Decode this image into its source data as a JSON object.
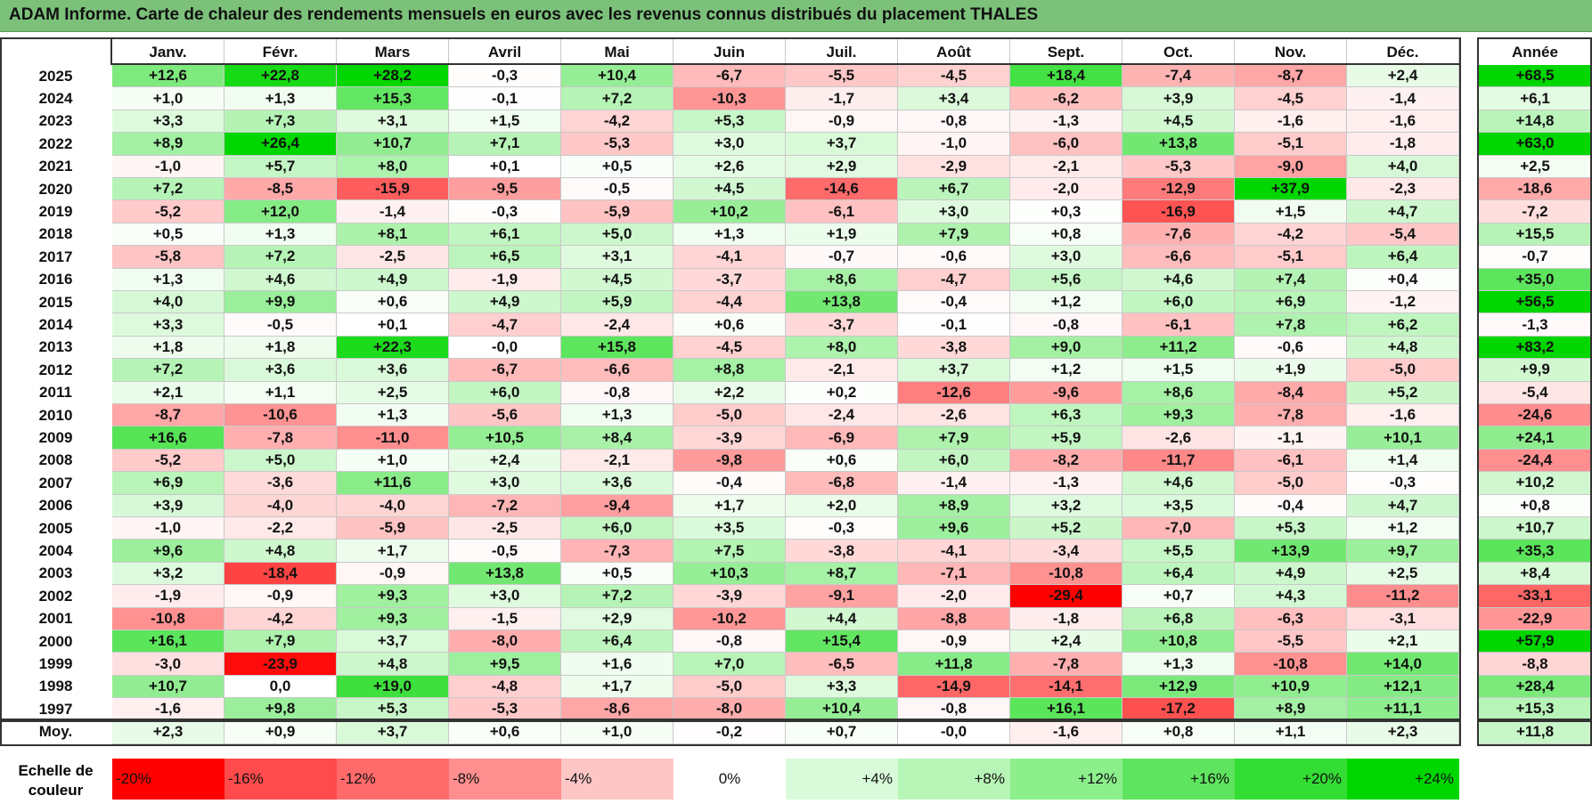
{
  "title": "ADAM Informe. Carte de chaleur des rendements mensuels en euros avec les revenus connus distribués du placement THALES",
  "chart_data": {
    "type": "heatmap",
    "title": "ADAM Informe. Carte de chaleur des rendements mensuels en euros avec les revenus connus distribués du placement THALES",
    "months": [
      "Janv.",
      "Févr.",
      "Mars",
      "Avril",
      "Mai",
      "Juin",
      "Juil.",
      "Août",
      "Sept.",
      "Oct.",
      "Nov.",
      "Déc."
    ],
    "year_header": "Année",
    "rows": [
      {
        "label": "2025",
        "values": [
          "+12,6",
          "+22,8",
          "+28,2",
          "-0,3",
          "+10,4",
          "-6,7",
          "-5,5",
          "-4,5",
          "+18,4",
          "-7,4",
          "-8,7",
          "+2,4"
        ],
        "year": "+68,5"
      },
      {
        "label": "2024",
        "values": [
          "+1,0",
          "+1,3",
          "+15,3",
          "-0,1",
          "+7,2",
          "-10,3",
          "-1,7",
          "+3,4",
          "-6,2",
          "+3,9",
          "-4,5",
          "-1,4"
        ],
        "year": "+6,1"
      },
      {
        "label": "2023",
        "values": [
          "+3,3",
          "+7,3",
          "+3,1",
          "+1,5",
          "-4,2",
          "+5,3",
          "-0,9",
          "-0,8",
          "-1,3",
          "+4,5",
          "-1,6",
          "-1,6"
        ],
        "year": "+14,8"
      },
      {
        "label": "2022",
        "values": [
          "+8,9",
          "+26,4",
          "+10,7",
          "+7,1",
          "-5,3",
          "+3,0",
          "+3,7",
          "-1,0",
          "-6,0",
          "+13,8",
          "-5,1",
          "-1,8"
        ],
        "year": "+63,0"
      },
      {
        "label": "2021",
        "values": [
          "-1,0",
          "+5,7",
          "+8,0",
          "+0,1",
          "+0,5",
          "+2,6",
          "+2,9",
          "-2,9",
          "-2,1",
          "-5,3",
          "-9,0",
          "+4,0"
        ],
        "year": "+2,5"
      },
      {
        "label": "2020",
        "values": [
          "+7,2",
          "-8,5",
          "-15,9",
          "-9,5",
          "-0,5",
          "+4,5",
          "-14,6",
          "+6,7",
          "-2,0",
          "-12,9",
          "+37,9",
          "-2,3"
        ],
        "year": "-18,6"
      },
      {
        "label": "2019",
        "values": [
          "-5,2",
          "+12,0",
          "-1,4",
          "-0,3",
          "-5,9",
          "+10,2",
          "-6,1",
          "+3,0",
          "+0,3",
          "-16,9",
          "+1,5",
          "+4,7"
        ],
        "year": "-7,2"
      },
      {
        "label": "2018",
        "values": [
          "+0,5",
          "+1,3",
          "+8,1",
          "+6,1",
          "+5,0",
          "+1,3",
          "+1,9",
          "+7,9",
          "+0,8",
          "-7,6",
          "-4,2",
          "-5,4"
        ],
        "year": "+15,5"
      },
      {
        "label": "2017",
        "values": [
          "-5,8",
          "+7,2",
          "-2,5",
          "+6,5",
          "+3,1",
          "-4,1",
          "-0,7",
          "-0,6",
          "+3,0",
          "-6,6",
          "-5,1",
          "+6,4"
        ],
        "year": "-0,7"
      },
      {
        "label": "2016",
        "values": [
          "+1,3",
          "+4,6",
          "+4,9",
          "-1,9",
          "+4,5",
          "-3,7",
          "+8,6",
          "-4,7",
          "+5,6",
          "+4,6",
          "+7,4",
          "+0,4"
        ],
        "year": "+35,0"
      },
      {
        "label": "2015",
        "values": [
          "+4,0",
          "+9,9",
          "+0,6",
          "+4,9",
          "+5,9",
          "-4,4",
          "+13,8",
          "-0,4",
          "+1,2",
          "+6,0",
          "+6,9",
          "-1,2"
        ],
        "year": "+56,5"
      },
      {
        "label": "2014",
        "values": [
          "+3,3",
          "-0,5",
          "+0,1",
          "-4,7",
          "-2,4",
          "+0,6",
          "-3,7",
          "-0,1",
          "-0,8",
          "-6,1",
          "+7,8",
          "+6,2"
        ],
        "year": "-1,3"
      },
      {
        "label": "2013",
        "values": [
          "+1,8",
          "+1,8",
          "+22,3",
          "-0,0",
          "+15,8",
          "-4,5",
          "+8,0",
          "-3,8",
          "+9,0",
          "+11,2",
          "-0,6",
          "+4,8"
        ],
        "year": "+83,2"
      },
      {
        "label": "2012",
        "values": [
          "+7,2",
          "+3,6",
          "+3,6",
          "-6,7",
          "-6,6",
          "+8,8",
          "-2,1",
          "+3,7",
          "+1,2",
          "+1,5",
          "+1,9",
          "-5,0"
        ],
        "year": "+9,9"
      },
      {
        "label": "2011",
        "values": [
          "+2,1",
          "+1,1",
          "+2,5",
          "+6,0",
          "-0,8",
          "+2,2",
          "+0,2",
          "-12,6",
          "-9,6",
          "+8,6",
          "-8,4",
          "+5,2"
        ],
        "year": "-5,4"
      },
      {
        "label": "2010",
        "values": [
          "-8,7",
          "-10,6",
          "+1,3",
          "-5,6",
          "+1,3",
          "-5,0",
          "-2,4",
          "-2,6",
          "+6,3",
          "+9,3",
          "-7,8",
          "-1,6"
        ],
        "year": "-24,6"
      },
      {
        "label": "2009",
        "values": [
          "+16,6",
          "-7,8",
          "-11,0",
          "+10,5",
          "+8,4",
          "-3,9",
          "-6,9",
          "+7,9",
          "+5,9",
          "-2,6",
          "-1,1",
          "+10,1"
        ],
        "year": "+24,1"
      },
      {
        "label": "2008",
        "values": [
          "-5,2",
          "+5,0",
          "+1,0",
          "+2,4",
          "-2,1",
          "-9,8",
          "+0,6",
          "+6,0",
          "-8,2",
          "-11,7",
          "-6,1",
          "+1,4"
        ],
        "year": "-24,4"
      },
      {
        "label": "2007",
        "values": [
          "+6,9",
          "-3,6",
          "+11,6",
          "+3,0",
          "+3,6",
          "-0,4",
          "-6,8",
          "-1,4",
          "-1,3",
          "+4,6",
          "-5,0",
          "-0,3"
        ],
        "year": "+10,2"
      },
      {
        "label": "2006",
        "values": [
          "+3,9",
          "-4,0",
          "-4,0",
          "-7,2",
          "-9,4",
          "+1,7",
          "+2,0",
          "+8,9",
          "+3,2",
          "+3,5",
          "-0,4",
          "+4,7"
        ],
        "year": "+0,8"
      },
      {
        "label": "2005",
        "values": [
          "-1,0",
          "-2,2",
          "-5,9",
          "-2,5",
          "+6,0",
          "+3,5",
          "-0,3",
          "+9,6",
          "+5,2",
          "-7,0",
          "+5,3",
          "+1,2"
        ],
        "year": "+10,7"
      },
      {
        "label": "2004",
        "values": [
          "+9,6",
          "+4,8",
          "+1,7",
          "-0,5",
          "-7,3",
          "+7,5",
          "-3,8",
          "-4,1",
          "-3,4",
          "+5,5",
          "+13,9",
          "+9,7"
        ],
        "year": "+35,3"
      },
      {
        "label": "2003",
        "values": [
          "+3,2",
          "-18,4",
          "-0,9",
          "+13,8",
          "+0,5",
          "+10,3",
          "+8,7",
          "-7,1",
          "-10,8",
          "+6,4",
          "+4,9",
          "+2,5"
        ],
        "year": "+8,4"
      },
      {
        "label": "2002",
        "values": [
          "-1,9",
          "-0,9",
          "+9,3",
          "+3,0",
          "+7,2",
          "-3,9",
          "-9,1",
          "-2,0",
          "-29,4",
          "+0,7",
          "+4,3",
          "-11,2"
        ],
        "year": "-33,1"
      },
      {
        "label": "2001",
        "values": [
          "-10,8",
          "-4,2",
          "+9,3",
          "-1,5",
          "+2,9",
          "-10,2",
          "+4,4",
          "-8,8",
          "-1,8",
          "+6,8",
          "-6,3",
          "-3,1"
        ],
        "year": "-22,9"
      },
      {
        "label": "2000",
        "values": [
          "+16,1",
          "+7,9",
          "+3,7",
          "-8,0",
          "+6,4",
          "-0,8",
          "+15,4",
          "-0,9",
          "+2,4",
          "+10,8",
          "-5,5",
          "+2,1"
        ],
        "year": "+57,9"
      },
      {
        "label": "1999",
        "values": [
          "-3,0",
          "-23,9",
          "+4,8",
          "+9,5",
          "+1,6",
          "+7,0",
          "-6,5",
          "+11,8",
          "-7,8",
          "+1,3",
          "-10,8",
          "+14,0"
        ],
        "year": "-8,8"
      },
      {
        "label": "1998",
        "values": [
          "+10,7",
          "0,0",
          "+19,0",
          "-4,8",
          "+1,7",
          "-5,0",
          "+3,3",
          "-14,9",
          "-14,1",
          "+12,9",
          "+10,9",
          "+12,1"
        ],
        "year": "+28,4"
      },
      {
        "label": "1997",
        "values": [
          "-1,6",
          "+9,8",
          "+5,3",
          "-5,3",
          "-8,6",
          "-8,0",
          "+10,4",
          "-0,8",
          "+16,1",
          "-17,2",
          "+8,9",
          "+11,1"
        ],
        "year": "+15,3"
      }
    ],
    "average": {
      "label": "Moy.",
      "values": [
        "+2,3",
        "+0,9",
        "+3,7",
        "+0,6",
        "+1,0",
        "-0,2",
        "+0,7",
        "-0,0",
        "-1,6",
        "+0,8",
        "+1,1",
        "+2,3"
      ],
      "year": "+11,8"
    },
    "scale": {
      "label": "Echelle de couleur",
      "steps": [
        "-20%",
        "-16%",
        "-12%",
        "-8%",
        "-4%",
        "0%",
        "+4%",
        "+8%",
        "+12%",
        "+16%",
        "+20%",
        "+24%"
      ],
      "colors": [
        "#ff0000",
        "#ff4b4b",
        "#ff6b6b",
        "#ff8f8f",
        "#ffc6c6",
        "#ffffff",
        "#d9fbd9",
        "#b7f5b7",
        "#8cef8c",
        "#5fe45f",
        "#34dd34",
        "#00d600"
      ]
    }
  }
}
